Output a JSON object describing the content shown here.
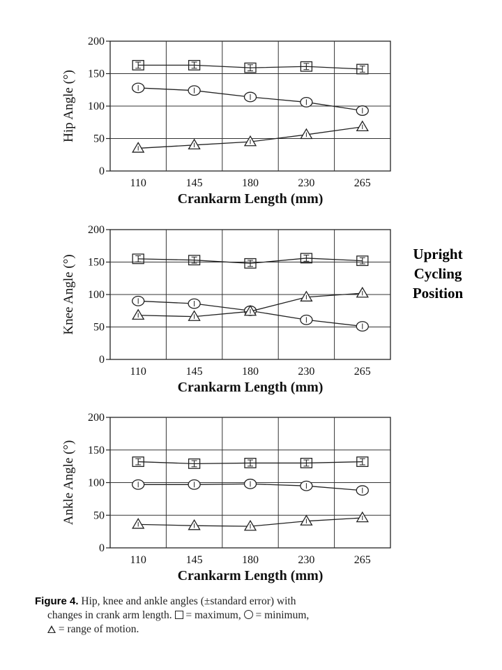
{
  "side_label": [
    "Upright",
    "Cycling",
    "Position"
  ],
  "caption": {
    "label": "Figure 4.",
    "line1": "Hip, knee and ankle angles (±standard error) with",
    "line2_a": "changes in crank arm length.",
    "line2_b": "= maximum,",
    "line2_c": "= minimum,",
    "line3": "= range of motion."
  },
  "chart_data": [
    {
      "type": "line",
      "title": "",
      "xlabel": "Crankarm Length (mm)",
      "ylabel": "Hip Angle (°)",
      "categories": [
        "110",
        "145",
        "180",
        "230",
        "265"
      ],
      "ylim": [
        0,
        200
      ],
      "yticks": [
        0,
        50,
        100,
        150,
        200
      ],
      "grid": true,
      "legend": "caption",
      "series": [
        {
          "marker": "square",
          "values": [
            163,
            163,
            159,
            161,
            157
          ]
        },
        {
          "marker": "circle",
          "values": [
            128,
            124,
            114,
            106,
            93
          ]
        },
        {
          "marker": "triangle",
          "values": [
            35,
            40,
            45,
            56,
            68
          ]
        }
      ]
    },
    {
      "type": "line",
      "title": "",
      "xlabel": "Crankarm Length (mm)",
      "ylabel": "Knee Angle (°)",
      "categories": [
        "110",
        "145",
        "180",
        "230",
        "265"
      ],
      "ylim": [
        0,
        200
      ],
      "yticks": [
        0,
        50,
        100,
        150,
        200
      ],
      "grid": true,
      "legend": "caption",
      "series": [
        {
          "marker": "square",
          "values": [
            155,
            153,
            148,
            156,
            152
          ]
        },
        {
          "marker": "circle",
          "values": [
            90,
            86,
            75,
            61,
            51
          ]
        },
        {
          "marker": "triangle",
          "values": [
            68,
            66,
            74,
            96,
            102
          ]
        }
      ]
    },
    {
      "type": "line",
      "title": "",
      "xlabel": "Crankarm Length (mm)",
      "ylabel": "Ankle Angle (°)",
      "categories": [
        "110",
        "145",
        "180",
        "230",
        "265"
      ],
      "ylim": [
        0,
        200
      ],
      "yticks": [
        0,
        50,
        100,
        150,
        200
      ],
      "grid": true,
      "legend": "caption",
      "series": [
        {
          "marker": "square",
          "values": [
            132,
            129,
            130,
            130,
            132
          ]
        },
        {
          "marker": "circle",
          "values": [
            97,
            97,
            98,
            95,
            88
          ]
        },
        {
          "marker": "triangle",
          "values": [
            36,
            34,
            33,
            41,
            46
          ]
        }
      ]
    }
  ]
}
